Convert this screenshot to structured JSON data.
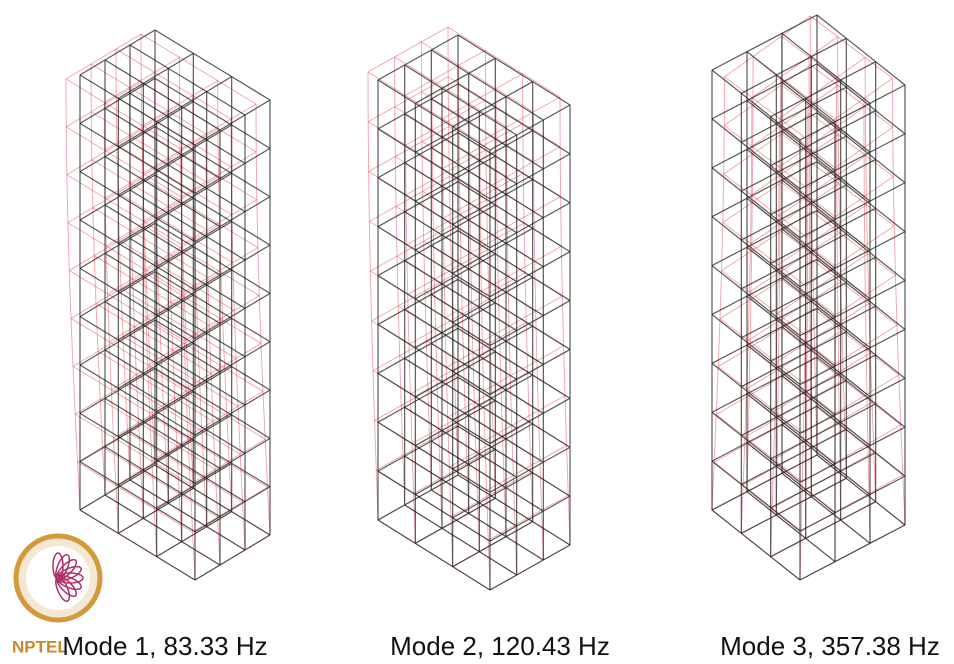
{
  "figures": [
    {
      "caption": "Mode 1, 83.33 Hz"
    },
    {
      "caption": "Mode 2, 120.43 Hz"
    },
    {
      "caption": "Mode 3, 357.38 Hz"
    }
  ],
  "logo": {
    "text": "NPTEL"
  }
}
